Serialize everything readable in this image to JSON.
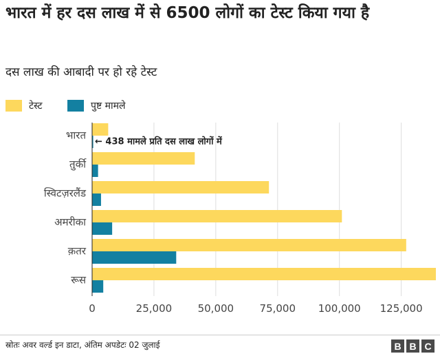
{
  "title": "भारत में हर दस लाख में से 6500 लोगों का टेस्ट किया गया है",
  "subtitle": "दस लाख की आबादी पर हो रहे टेस्ट",
  "legend": [
    {
      "label": "टेस्ट",
      "color": "#FDD85D"
    },
    {
      "label": "पुष्ट मामले",
      "color": "#1380A1"
    }
  ],
  "source": "स्रोतः अवर वर्ल्ड इन डाटा, अंतिम अपडेटः 02 जुलाई",
  "logo": {
    "b1": "B",
    "b2": "B",
    "b3": "C"
  },
  "chart_data": {
    "type": "bar",
    "orientation": "horizontal",
    "categories": [
      "भारत",
      "तुर्की",
      "स्विटज़रलैंड",
      "अमरीका",
      "क़तर",
      "रूस"
    ],
    "series": [
      {
        "name": "टेस्ट",
        "color": "#FDD85D",
        "values": [
          6500,
          41500,
          71500,
          101000,
          127000,
          139000
        ]
      },
      {
        "name": "पुष्ट मामले",
        "color": "#1380A1",
        "values": [
          438,
          2400,
          3600,
          8100,
          34000,
          4500
        ]
      }
    ],
    "xlim": [
      0,
      139000
    ],
    "xticks": [
      0,
      25000,
      50000,
      75000,
      100000,
      125000
    ],
    "xtick_labels": [
      "0",
      "25,000",
      "50,000",
      "75,000",
      "100,000",
      "125,000"
    ],
    "grid": true,
    "legend_position": "top-left",
    "annotation": {
      "category_index": 0,
      "text": "438 मामले प्रति दस लाख लोगों में",
      "arrow": "←"
    }
  }
}
